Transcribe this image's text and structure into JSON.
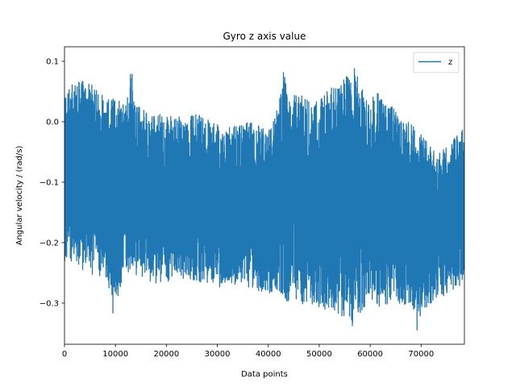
{
  "chart_data": {
    "type": "line",
    "title": "Gyro z axis value",
    "xlabel": "Data points",
    "ylabel": "Angular velocity / (rad/s)",
    "xlim": [
      0,
      78500
    ],
    "ylim": [
      -0.368,
      0.124
    ],
    "xticks": [
      0,
      10000,
      20000,
      30000,
      40000,
      50000,
      60000,
      70000
    ],
    "xtick_labels": [
      "0",
      "10000",
      "20000",
      "30000",
      "40000",
      "50000",
      "60000",
      "70000"
    ],
    "yticks": [
      0.1,
      0.0,
      -0.1,
      -0.2,
      -0.3
    ],
    "ytick_labels": [
      "0.1",
      "0.0",
      "−0.1",
      "−0.2",
      "−0.3"
    ],
    "grid": false,
    "legend": {
      "position": "top-right",
      "entries": [
        "z"
      ]
    },
    "series": [
      {
        "name": "z",
        "color": "#1f77b4",
        "x": [
          0,
          2000,
          4000,
          6000,
          8000,
          10000,
          12000,
          13000,
          14000,
          16000,
          18000,
          20000,
          22000,
          24000,
          26000,
          28000,
          30000,
          32000,
          34000,
          36000,
          38000,
          40000,
          42000,
          43000,
          44000,
          46000,
          48000,
          50000,
          52000,
          54000,
          56000,
          57000,
          58000,
          60000,
          62000,
          64000,
          66000,
          68000,
          70000,
          72000,
          74000,
          76000,
          78500
        ],
        "upper": [
          0.05,
          0.065,
          0.068,
          0.058,
          0.045,
          0.04,
          0.035,
          0.102,
          0.03,
          0.02,
          0.015,
          0.012,
          0.01,
          0.005,
          0.015,
          0.005,
          -0.005,
          -0.01,
          -0.005,
          0.0,
          -0.005,
          -0.015,
          0.03,
          0.085,
          0.04,
          0.05,
          0.04,
          0.035,
          0.06,
          0.055,
          0.09,
          0.102,
          0.06,
          0.04,
          0.05,
          0.03,
          0.01,
          0.0,
          -0.02,
          -0.04,
          -0.05,
          -0.03,
          -0.01
        ],
        "lower": [
          -0.23,
          -0.24,
          -0.25,
          -0.255,
          -0.26,
          -0.3,
          -0.26,
          -0.25,
          -0.255,
          -0.265,
          -0.27,
          -0.265,
          -0.26,
          -0.26,
          -0.265,
          -0.27,
          -0.275,
          -0.27,
          -0.27,
          -0.275,
          -0.28,
          -0.285,
          -0.28,
          -0.29,
          -0.3,
          -0.305,
          -0.3,
          -0.31,
          -0.31,
          -0.32,
          -0.335,
          -0.33,
          -0.32,
          -0.3,
          -0.31,
          -0.3,
          -0.3,
          -0.31,
          -0.33,
          -0.3,
          -0.29,
          -0.28,
          -0.27
        ],
        "low_spikes": [
          [
            9500,
            -0.317
          ],
          [
            56500,
            -0.338
          ],
          [
            69200,
            -0.345
          ]
        ]
      }
    ]
  }
}
